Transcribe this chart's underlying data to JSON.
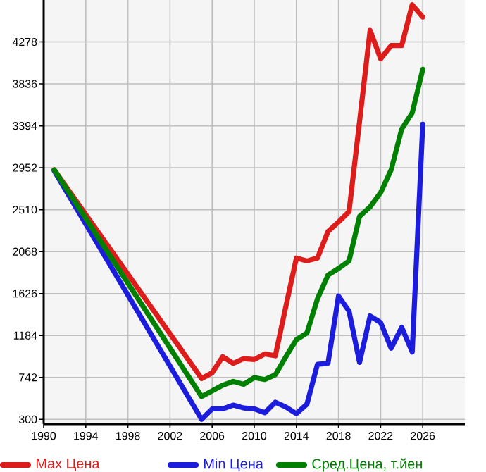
{
  "chart_data": {
    "type": "line",
    "x": [
      1991,
      2005,
      2006,
      2007,
      2008,
      2009,
      2010,
      2011,
      2012,
      2013,
      2014,
      2015,
      2016,
      2017,
      2018,
      2019,
      2020,
      2021,
      2022,
      2023,
      2024,
      2025,
      2026
    ],
    "series": [
      {
        "name": "Max Цена",
        "color": "#dd1c1c",
        "values": [
          2930,
          730,
          790,
          960,
          890,
          940,
          930,
          990,
          970,
          1490,
          2000,
          1970,
          2000,
          2280,
          2380,
          2490,
          3440,
          4400,
          4100,
          4240,
          4240,
          4670,
          4540
        ]
      },
      {
        "name": "Min Цена",
        "color": "#1c1cdd",
        "values": [
          2920,
          300,
          410,
          410,
          450,
          420,
          410,
          370,
          480,
          430,
          360,
          460,
          880,
          890,
          1600,
          1440,
          900,
          1390,
          1320,
          1050,
          1270,
          1010,
          3410
        ]
      },
      {
        "name": "Сред.Цена, т.йен",
        "color": "#008000",
        "values": [
          2930,
          540,
          600,
          660,
          700,
          670,
          740,
          720,
          770,
          960,
          1140,
          1210,
          1570,
          1820,
          1890,
          1970,
          2440,
          2540,
          2690,
          2930,
          3360,
          3530,
          3990
        ]
      }
    ],
    "xlim": [
      1990,
      2030
    ],
    "xticks": [
      1990,
      1994,
      1998,
      2002,
      2006,
      2010,
      2014,
      2018,
      2022,
      2026
    ],
    "ylim": [
      250,
      4720
    ],
    "yticks": [
      300,
      742,
      1184,
      1626,
      2068,
      2510,
      2952,
      3394,
      3836,
      4278
    ],
    "grid": true,
    "legend": "bottom",
    "marker": "none",
    "line_style": "solid"
  }
}
